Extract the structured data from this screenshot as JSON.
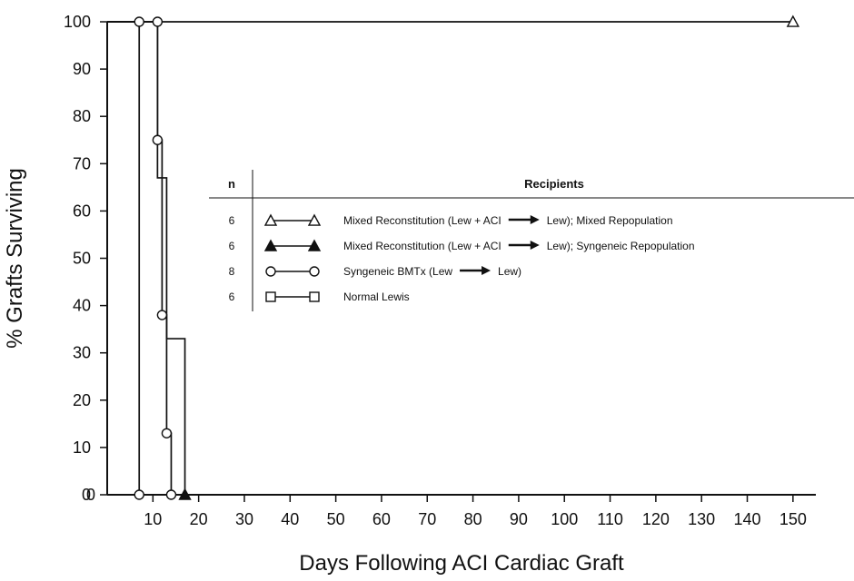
{
  "chart_data": {
    "type": "line",
    "xlabel": "Days Following ACI Cardiac Graft",
    "ylabel": "% Grafts Surviving",
    "x_ticks": [
      10,
      20,
      30,
      40,
      50,
      60,
      70,
      80,
      90,
      100,
      110,
      120,
      130,
      140,
      150
    ],
    "y_ticks": [
      0,
      10,
      20,
      30,
      40,
      50,
      60,
      70,
      80,
      90,
      100
    ],
    "x_axis_origin_label": "0",
    "xlim": [
      0,
      155
    ],
    "ylim": [
      0,
      100
    ],
    "grid": false,
    "legend_placement": "center-right",
    "legend": {
      "header_n": "n",
      "header_recipients": "Recipients",
      "rows": [
        {
          "n": "6",
          "marker": "open-triangle",
          "label_start": "Mixed Reconstitution (Lew + ACI",
          "label_end": "Lew); Mixed Repopulation"
        },
        {
          "n": "6",
          "marker": "filled-triangle",
          "label_start": "Mixed Reconstitution (Lew + ACI",
          "label_end": "Lew); Syngeneic Repopulation"
        },
        {
          "n": "8",
          "marker": "open-circle",
          "label_start": "Syngeneic BMTx (Lew",
          "label_end": "Lew)"
        },
        {
          "n": "6",
          "marker": "open-square",
          "label_start": "Normal Lewis",
          "label_end": ""
        }
      ]
    },
    "series": [
      {
        "marker": "open-triangle",
        "x": [
          0,
          150
        ],
        "y": [
          100,
          100
        ]
      },
      {
        "marker": "filled-triangle",
        "x": [
          0,
          11,
          11,
          13,
          13,
          14,
          14,
          17,
          17
        ],
        "y": [
          100,
          100,
          67,
          67,
          33,
          33,
          33,
          33,
          0
        ]
      },
      {
        "marker": "open-circle",
        "x": [
          0,
          11,
          11,
          12,
          12,
          13,
          13,
          14,
          14
        ],
        "y": [
          100,
          100,
          75,
          75,
          38,
          38,
          13,
          13,
          0
        ]
      },
      {
        "marker": "open-square",
        "x": [
          0,
          7,
          7
        ],
        "y": [
          100,
          100,
          0
        ]
      }
    ],
    "markers": [
      {
        "series": "open-triangle",
        "x": 150,
        "y": 100
      },
      {
        "series": "filled-triangle",
        "x": 17,
        "y": 0
      },
      {
        "series": "open-circle",
        "x": 7,
        "y": 100
      },
      {
        "series": "open-circle",
        "x": 11,
        "y": 100
      },
      {
        "series": "open-circle",
        "x": 11,
        "y": 75
      },
      {
        "series": "open-circle",
        "x": 12,
        "y": 38
      },
      {
        "series": "open-circle",
        "x": 13,
        "y": 13
      },
      {
        "series": "open-circle",
        "x": 14,
        "y": 0
      },
      {
        "series": "open-circle",
        "x": 7,
        "y": 0
      }
    ],
    "colors": {
      "axis": "#111111",
      "line": "#111111",
      "background": "#ffffff"
    }
  }
}
